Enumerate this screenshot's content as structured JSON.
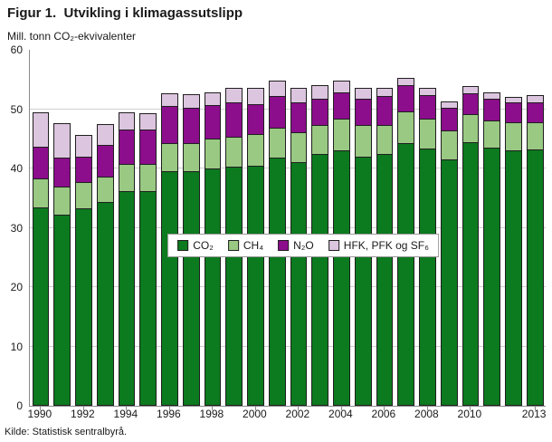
{
  "title": "Figur 1.  Utvikling i klimagassutslipp",
  "source": "Kilde: Statistisk sentralbyrå.",
  "chart_data": {
    "type": "bar",
    "stacked": true,
    "title": "Figur 1.  Utvikling i klimagassutslipp",
    "ylabel": "Mill. tonn CO₂-ekvivalenter",
    "xlabel": "",
    "ylim": [
      0,
      60
    ],
    "yticks": [
      0,
      10,
      20,
      30,
      40,
      50,
      60
    ],
    "grid": true,
    "legend_position": "inside-center",
    "categories": [
      1990,
      1991,
      1992,
      1993,
      1994,
      1995,
      1996,
      1997,
      1998,
      1999,
      2000,
      2001,
      2002,
      2003,
      2004,
      2005,
      2006,
      2007,
      2008,
      2009,
      2010,
      2011,
      2012,
      2013
    ],
    "xtick_labels": [
      "1990",
      "1992",
      "1994",
      "1996",
      "1998",
      "2000",
      "2002",
      "2004",
      "2006",
      "2008",
      "2010",
      "2013"
    ],
    "xtick_indices": [
      0,
      2,
      4,
      6,
      8,
      10,
      12,
      14,
      16,
      18,
      20,
      23
    ],
    "series": [
      {
        "name": "CO₂",
        "color": "#0c7a1e",
        "values": [
          33.5,
          32.2,
          33.3,
          34.3,
          36.2,
          36.2,
          39.6,
          39.6,
          40.0,
          40.3,
          40.5,
          41.8,
          41.0,
          42.5,
          43.0,
          42.0,
          42.4,
          44.3,
          43.4,
          41.5,
          44.5,
          43.5,
          43.0,
          43.2
        ]
      },
      {
        "name": "CH₄",
        "color": "#99c982",
        "values": [
          5.0,
          4.9,
          4.6,
          4.5,
          4.7,
          4.7,
          4.9,
          4.9,
          5.2,
          5.2,
          5.5,
          5.2,
          5.3,
          5.0,
          5.5,
          5.5,
          5.1,
          5.5,
          5.1,
          5.0,
          4.8,
          4.8,
          5.0,
          4.8
        ]
      },
      {
        "name": "N₂O",
        "color": "#8c0e8c",
        "values": [
          5.5,
          5.0,
          4.4,
          5.5,
          6.0,
          5.9,
          6.4,
          6.0,
          5.8,
          6.0,
          5.2,
          5.5,
          5.2,
          4.6,
          4.6,
          4.6,
          5.0,
          4.5,
          4.2,
          4.0,
          3.7,
          3.7,
          3.5,
          3.5
        ]
      },
      {
        "name": "HFK, PFK og SF₆",
        "color": "#dcc5de",
        "values": [
          6.0,
          6.0,
          3.8,
          3.7,
          3.0,
          3.0,
          2.3,
          2.5,
          2.3,
          2.5,
          2.8,
          2.8,
          2.5,
          2.4,
          2.2,
          1.9,
          1.6,
          1.5,
          1.4,
          1.3,
          1.3,
          1.3,
          1.0,
          1.3
        ]
      }
    ]
  }
}
